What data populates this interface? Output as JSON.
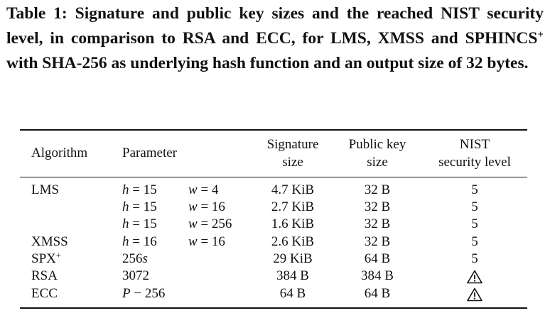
{
  "caption": {
    "part1": "Table 1: Signature and public key sizes and the reached NIST security level, in comparison to RSA and ECC, for LMS, XMSS and SPHINCS",
    "sup": "+",
    "part2": " with SHA-256 as underlying hash function and an output size of 32 bytes."
  },
  "headers": {
    "algorithm": "Algorithm",
    "parameter": "Parameter",
    "signature_1": "Signature",
    "signature_2": "size",
    "pubkey_1": "Public key",
    "pubkey_2": "size",
    "nist_1": "NIST",
    "nist_2": "security level"
  },
  "rows": [
    {
      "algorithm": "LMS",
      "param1_var": "h",
      "param1_val": " = 15",
      "param2_var": "w",
      "param2_val": " = 4",
      "signature": "4.7 KiB",
      "pubkey": "32 B",
      "level": "5"
    },
    {
      "algorithm": "",
      "param1_var": "h",
      "param1_val": " = 15",
      "param2_var": "w",
      "param2_val": " = 16",
      "signature": "2.7 KiB",
      "pubkey": "32 B",
      "level": "5"
    },
    {
      "algorithm": "",
      "param1_var": "h",
      "param1_val": " = 15",
      "param2_var": "w",
      "param2_val": " = 256",
      "signature": "1.6 KiB",
      "pubkey": "32 B",
      "level": "5"
    },
    {
      "algorithm": "XMSS",
      "param1_var": "h",
      "param1_val": " = 16",
      "param2_var": "w",
      "param2_val": " = 16",
      "signature": "2.6 KiB",
      "pubkey": "32 B",
      "level": "5"
    },
    {
      "algorithm": "SPX",
      "algorithm_sup": "+",
      "param1_val": "256",
      "param1_suffix": "s",
      "signature": "29 KiB",
      "pubkey": "64 B",
      "level": "5"
    },
    {
      "algorithm": "RSA",
      "param1_val": "3072",
      "signature": "384 B",
      "pubkey": "384 B",
      "level_icon": "warning-triangle-icon"
    },
    {
      "algorithm": "ECC",
      "param1_var": "P",
      "param1_val": " − 256",
      "signature": "64 B",
      "pubkey": "64 B",
      "level_icon": "warning-triangle-icon"
    }
  ]
}
